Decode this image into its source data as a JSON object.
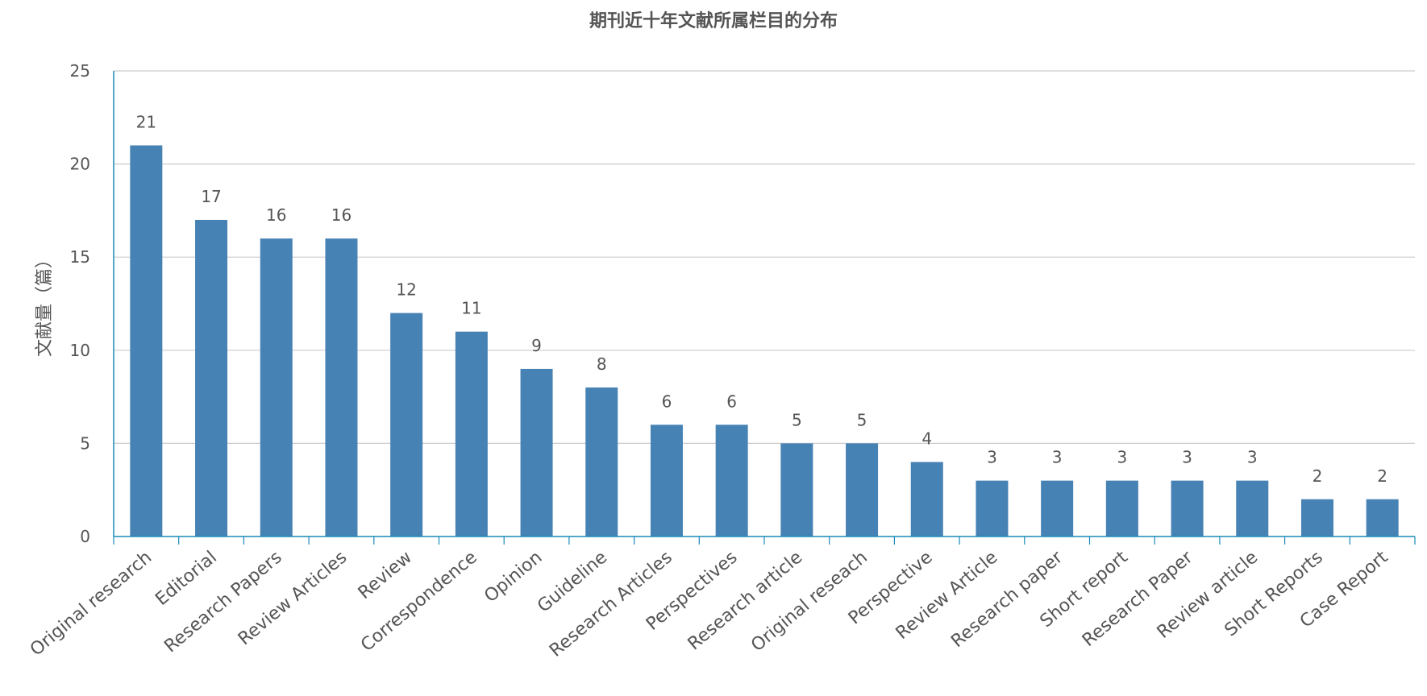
{
  "chart_data": {
    "type": "bar",
    "title": "期刊近十年文献所属栏目的分布",
    "xlabel": "",
    "ylabel": "文献量（篇）",
    "ylim": [
      0,
      25
    ],
    "yticks": [
      "0",
      "5",
      "10",
      "15",
      "20",
      "25"
    ],
    "grid": true,
    "legend": "none",
    "categories": [
      "Original research",
      "Editorial",
      "Research Papers",
      "Review Articles",
      "Review",
      "Correspondence",
      "Opinion",
      "Guideline",
      "Research Articles",
      "Perspectives",
      "Research article",
      "Original reseach",
      "Perspective",
      "Review Article",
      "Research paper",
      "Short report",
      "Research Paper",
      "Review article",
      "Short Reports",
      "Case Report"
    ],
    "values": [
      21,
      17,
      16,
      16,
      12,
      11,
      9,
      8,
      6,
      6,
      5,
      5,
      4,
      3,
      3,
      3,
      3,
      3,
      2,
      2
    ],
    "colors": {
      "bar": "#4682b4",
      "axis": "#1a8bb8",
      "grid": "#cccccc",
      "text": "#555555"
    }
  }
}
